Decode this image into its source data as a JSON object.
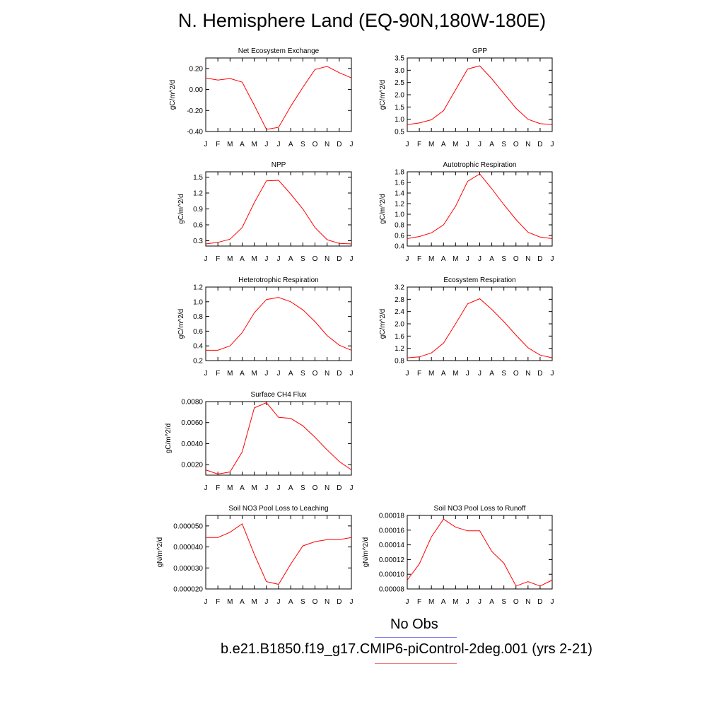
{
  "title": "N. Hemisphere Land (EQ-90N,180W-180E)",
  "legend": {
    "obs_label": "No Obs",
    "run_label": "b.e21.B1850.f19_g17.CMIP6-piControl-2deg.001 (yrs 2-21)",
    "obs_color": "#7b7bf0",
    "run_color": "#f07b7b"
  },
  "line_color": "#ff0000",
  "chart_data": [
    {
      "type": "line",
      "title": "Net Ecosystem Exchange",
      "ylabel": "gC/m^2/d",
      "xlabel": "",
      "categories": [
        "J",
        "F",
        "M",
        "A",
        "M",
        "J",
        "J",
        "A",
        "S",
        "O",
        "N",
        "D",
        "J"
      ],
      "values": [
        0.11,
        0.09,
        0.105,
        0.07,
        -0.15,
        -0.38,
        -0.36,
        -0.16,
        0.02,
        0.19,
        0.22,
        0.16,
        0.11
      ],
      "ylim": [
        -0.4,
        0.3
      ],
      "yticks": [
        -0.4,
        -0.2,
        0.0,
        0.2
      ],
      "yticklabels": [
        "-0.40",
        "-0.20",
        "0.00",
        "0.20"
      ],
      "grid": false
    },
    {
      "type": "line",
      "title": "GPP",
      "ylabel": "gC/m^2/d",
      "xlabel": "",
      "categories": [
        "J",
        "F",
        "M",
        "A",
        "M",
        "J",
        "J",
        "A",
        "S",
        "O",
        "N",
        "D",
        "J"
      ],
      "values": [
        0.78,
        0.85,
        0.98,
        1.35,
        2.2,
        3.05,
        3.18,
        2.65,
        2.05,
        1.45,
        1.0,
        0.82,
        0.78
      ],
      "ylim": [
        0.5,
        3.5
      ],
      "yticks": [
        0.5,
        1.0,
        1.5,
        2.0,
        2.5,
        3.0,
        3.5
      ],
      "yticklabels": [
        "0.5",
        "1.0",
        "1.5",
        "2.0",
        "2.5",
        "3.0",
        "3.5"
      ],
      "grid": false
    },
    {
      "type": "line",
      "title": "NPP",
      "ylabel": "gC/m^2/d",
      "xlabel": "",
      "categories": [
        "J",
        "F",
        "M",
        "A",
        "M",
        "J",
        "J",
        "A",
        "S",
        "O",
        "N",
        "D",
        "J"
      ],
      "values": [
        0.24,
        0.27,
        0.33,
        0.55,
        1.02,
        1.43,
        1.44,
        1.18,
        0.9,
        0.55,
        0.32,
        0.25,
        0.24
      ],
      "ylim": [
        0.2,
        1.6
      ],
      "yticks": [
        0.3,
        0.6,
        0.9,
        1.2,
        1.5
      ],
      "yticklabels": [
        "0.3",
        "0.6",
        "0.9",
        "1.2",
        "1.5"
      ],
      "grid": false
    },
    {
      "type": "line",
      "title": "Autotrophic Respiration",
      "ylabel": "gC/m^2/d",
      "xlabel": "",
      "categories": [
        "J",
        "F",
        "M",
        "A",
        "M",
        "J",
        "J",
        "A",
        "S",
        "O",
        "N",
        "D",
        "J"
      ],
      "values": [
        0.54,
        0.58,
        0.65,
        0.8,
        1.15,
        1.62,
        1.76,
        1.48,
        1.18,
        0.9,
        0.66,
        0.57,
        0.54
      ],
      "ylim": [
        0.4,
        1.8
      ],
      "yticks": [
        0.4,
        0.6,
        0.8,
        1.0,
        1.2,
        1.4,
        1.6,
        1.8
      ],
      "yticklabels": [
        "0.4",
        "0.6",
        "0.8",
        "1.0",
        "1.2",
        "1.4",
        "1.6",
        "1.8"
      ],
      "grid": false
    },
    {
      "type": "line",
      "title": "Heterotrophic Respiration",
      "ylabel": "gC/m^2/d",
      "xlabel": "",
      "categories": [
        "J",
        "F",
        "M",
        "A",
        "M",
        "J",
        "J",
        "A",
        "S",
        "O",
        "N",
        "D",
        "J"
      ],
      "values": [
        0.34,
        0.34,
        0.4,
        0.58,
        0.85,
        1.03,
        1.06,
        1.0,
        0.89,
        0.73,
        0.54,
        0.41,
        0.34
      ],
      "ylim": [
        0.2,
        1.2
      ],
      "yticks": [
        0.2,
        0.4,
        0.6,
        0.8,
        1.0,
        1.2
      ],
      "yticklabels": [
        "0.2",
        "0.4",
        "0.6",
        "0.8",
        "1.0",
        "1.2"
      ],
      "grid": false
    },
    {
      "type": "line",
      "title": "Ecosystem Respiration",
      "ylabel": "gC/m^2/d",
      "xlabel": "",
      "categories": [
        "J",
        "F",
        "M",
        "A",
        "M",
        "J",
        "J",
        "A",
        "S",
        "O",
        "N",
        "D",
        "J"
      ],
      "values": [
        0.89,
        0.92,
        1.05,
        1.37,
        2.0,
        2.65,
        2.82,
        2.47,
        2.07,
        1.63,
        1.22,
        0.98,
        0.89
      ],
      "ylim": [
        0.8,
        3.2
      ],
      "yticks": [
        0.8,
        1.2,
        1.6,
        2.0,
        2.4,
        2.8,
        3.2
      ],
      "yticklabels": [
        "0.8",
        "1.2",
        "1.6",
        "2.0",
        "2.4",
        "2.8",
        "3.2"
      ],
      "grid": false
    },
    {
      "type": "line",
      "title": "Surface CH4 Flux",
      "ylabel": "gC/m^2/d",
      "xlabel": "",
      "categories": [
        "J",
        "F",
        "M",
        "A",
        "M",
        "J",
        "J",
        "A",
        "S",
        "O",
        "N",
        "D",
        "J"
      ],
      "values": [
        0.0015,
        0.0011,
        0.0013,
        0.0032,
        0.0074,
        0.0079,
        0.0065,
        0.0064,
        0.0057,
        0.0046,
        0.0034,
        0.0023,
        0.0015
      ],
      "ylim": [
        0.001,
        0.008
      ],
      "yticks": [
        0.002,
        0.004,
        0.006,
        0.008
      ],
      "yticklabels": [
        "0.0020",
        "0.0040",
        "0.0060",
        "0.0080"
      ],
      "grid": false
    },
    {
      "type": "line",
      "title": "Soil NO3 Pool Loss to Leaching",
      "ylabel": "gN/m^2/d",
      "xlabel": "",
      "categories": [
        "J",
        "F",
        "M",
        "A",
        "M",
        "J",
        "J",
        "A",
        "S",
        "O",
        "N",
        "D",
        "J"
      ],
      "values": [
        4.45e-05,
        4.45e-05,
        4.7e-05,
        5.1e-05,
        3.65e-05,
        2.35e-05,
        2.22e-05,
        3.18e-05,
        4.05e-05,
        4.25e-05,
        4.35e-05,
        4.35e-05,
        4.45e-05
      ],
      "ylim": [
        2e-05,
        5.5e-05
      ],
      "yticks": [
        2e-05,
        3e-05,
        4e-05,
        5e-05
      ],
      "yticklabels": [
        "0.000020",
        "0.000030",
        "0.000040",
        "0.000050"
      ],
      "grid": false
    },
    {
      "type": "line",
      "title": "Soil NO3 Pool Loss to Runoff",
      "ylabel": "gN/m^2/d",
      "xlabel": "",
      "categories": [
        "J",
        "F",
        "M",
        "A",
        "M",
        "J",
        "J",
        "A",
        "S",
        "O",
        "N",
        "D",
        "J"
      ],
      "values": [
        9.2e-05,
        0.000114,
        0.000151,
        0.000175,
        0.000164,
        0.000159,
        0.000159,
        0.000131,
        0.000115,
        8.4e-05,
        9e-05,
        8.4e-05,
        9.2e-05
      ],
      "ylim": [
        8e-05,
        0.00018
      ],
      "yticks": [
        8e-05,
        0.0001,
        0.00012,
        0.00014,
        0.00016,
        0.00018
      ],
      "yticklabels": [
        "0.00008",
        "0.00010",
        "0.00012",
        "0.00014",
        "0.00016",
        "0.00018"
      ],
      "grid": false
    }
  ]
}
